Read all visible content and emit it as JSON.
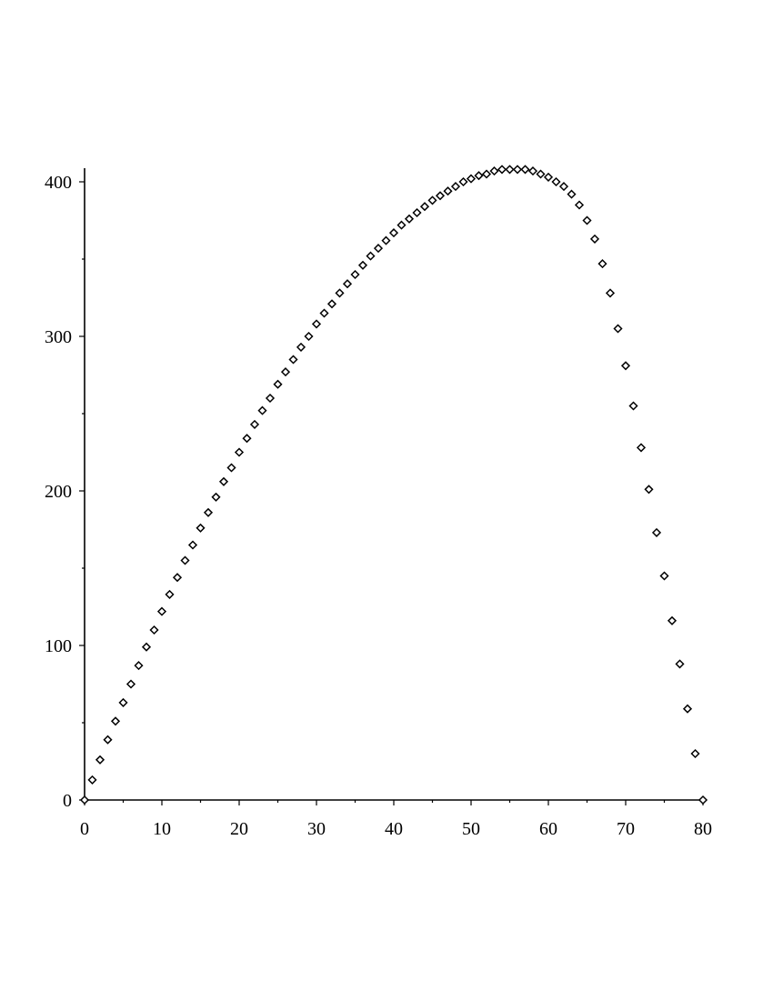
{
  "chart_data": {
    "type": "scatter",
    "title": "",
    "xlabel": "",
    "ylabel": "",
    "xlim": [
      0,
      80
    ],
    "ylim": [
      0,
      410
    ],
    "x_ticks": [
      0,
      10,
      20,
      30,
      40,
      50,
      60,
      70,
      80
    ],
    "x_tick_labels": [
      "0",
      "10",
      "20",
      "30",
      "40",
      "50",
      "60",
      "70",
      "80"
    ],
    "y_ticks": [
      0,
      100,
      200,
      300,
      400
    ],
    "y_tick_labels": [
      "0",
      "100",
      "200",
      "300",
      "400"
    ],
    "y_minor_ticks": [
      50,
      150,
      250,
      350
    ],
    "grid": false,
    "legend": "none",
    "marker": "diamond-open",
    "marker_color": "#000000",
    "series": [
      {
        "x": [
          0,
          1,
          2,
          3,
          4,
          5,
          6,
          7,
          8,
          9,
          10,
          11,
          12,
          13,
          14,
          15,
          16,
          17,
          18,
          19,
          20,
          21,
          22,
          23,
          24,
          25,
          26,
          27,
          28,
          29,
          30,
          31,
          32,
          33,
          34,
          35,
          36,
          37,
          38,
          39,
          40,
          41,
          42,
          43,
          44,
          45,
          46,
          47,
          48,
          49,
          50,
          51,
          52,
          53,
          54,
          55,
          56,
          57,
          58,
          59,
          60,
          61,
          62,
          63,
          64,
          65,
          66,
          67,
          68,
          69,
          70,
          71,
          72,
          73,
          74,
          75,
          76,
          77,
          78,
          79,
          80
        ],
        "y": [
          0,
          13,
          26,
          39,
          51,
          63,
          75,
          87,
          99,
          110,
          122,
          133,
          144,
          155,
          165,
          176,
          186,
          196,
          206,
          215,
          225,
          234,
          243,
          252,
          260,
          269,
          277,
          285,
          293,
          300,
          308,
          315,
          321,
          328,
          334,
          340,
          346,
          352,
          357,
          362,
          367,
          372,
          376,
          380,
          384,
          388,
          391,
          394,
          397,
          400,
          402,
          404,
          405,
          407,
          408,
          408,
          408,
          408,
          407,
          405,
          403,
          400,
          397,
          392,
          385,
          375,
          363,
          347,
          328,
          305,
          281,
          255,
          228,
          201,
          173,
          145,
          116,
          88,
          59,
          30,
          0
        ]
      }
    ]
  }
}
